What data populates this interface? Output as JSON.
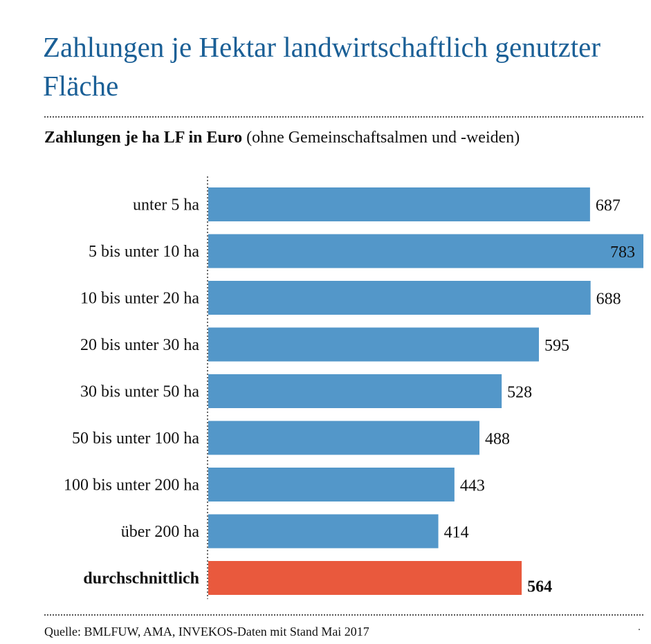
{
  "title": "Zahlungen je Hektar landwirtschaftlich genutzter Fläche",
  "subtitle_bold": "Zahlungen je ha LF in Euro",
  "subtitle_rest": "(ohne Gemeinschaftsalmen und -weiden)",
  "source": "Quelle: BMLFUW, AMA, INVEKOS-Daten mit Stand Mai 2017",
  "colors": {
    "title": "#1a5f96",
    "bar": "#5397c9",
    "average": "#e9593d"
  },
  "chart_data": {
    "type": "bar",
    "orientation": "horizontal",
    "categories": [
      "unter 5 ha",
      "5 bis unter 10 ha",
      "10 bis unter 20 ha",
      "20 bis unter 30 ha",
      "30 bis unter 50 ha",
      "50 bis unter 100 ha",
      "100 bis unter 200 ha",
      "über 200 ha",
      "durchschnittlich"
    ],
    "values": [
      687,
      783,
      688,
      595,
      528,
      488,
      443,
      414,
      564
    ],
    "highlight_index": 8,
    "data_labels": [
      "687",
      "783",
      "688",
      "595",
      "528",
      "488",
      "443",
      "414",
      "564"
    ],
    "xlim": [
      0,
      783
    ],
    "grid": false,
    "legend": "none"
  }
}
